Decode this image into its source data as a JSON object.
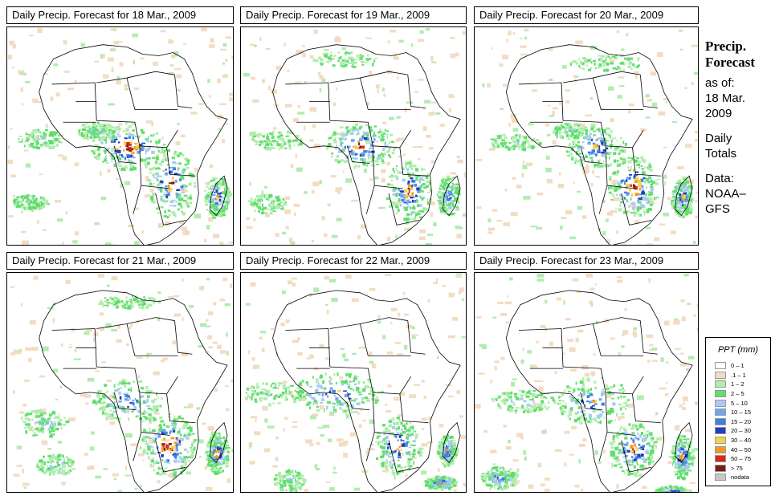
{
  "panels": [
    {
      "title": "Daily Precip. Forecast for  18 Mar., 2009"
    },
    {
      "title": "Daily Precip. Forecast for  19 Mar., 2009"
    },
    {
      "title": "Daily Precip. Forecast for  20 Mar., 2009"
    },
    {
      "title": "Daily Precip. Forecast for  21 Mar., 2009"
    },
    {
      "title": "Daily Precip. Forecast for  22 Mar., 2009"
    },
    {
      "title": "Daily Precip. Forecast for  23 Mar., 2009"
    }
  ],
  "sidebar": {
    "heading_line1": "Precip.",
    "heading_line2": "Forecast",
    "asof_label": "as of:",
    "asof_day": "18 Mar.",
    "asof_year": "2009",
    "totals_line1": "Daily",
    "totals_line2": "Totals",
    "data_label": "Data:",
    "data_line1": "NOAA–",
    "data_line2": "GFS"
  },
  "legend": {
    "title": "PPT (mm)",
    "items": [
      {
        "label": "0 – 1",
        "color": "#ffffff"
      },
      {
        "label": ".1 – 1",
        "color": "#f2dcc2"
      },
      {
        "label": "1 – 2",
        "color": "#b2ecb0"
      },
      {
        "label": "2 – 5",
        "color": "#5fdf6b"
      },
      {
        "label": "5 – 10",
        "color": "#a9cbf2"
      },
      {
        "label": "10 – 15",
        "color": "#6fa6ee"
      },
      {
        "label": "15 – 20",
        "color": "#3f7fe6"
      },
      {
        "label": "20 – 30",
        "color": "#1f3fbf"
      },
      {
        "label": "30 – 40",
        "color": "#f6d24a"
      },
      {
        "label": "40 – 50",
        "color": "#f39a1c"
      },
      {
        "label": "50 – 75",
        "color": "#d8261a"
      },
      {
        "label": "> 75",
        "color": "#7a1c10"
      },
      {
        "label": "nodata",
        "color": "#c8c8c8"
      }
    ]
  }
}
